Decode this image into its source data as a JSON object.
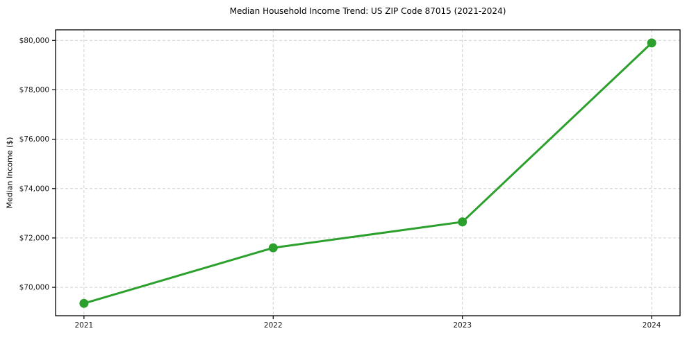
{
  "chart_data": {
    "type": "line",
    "title": "Median Household Income Trend: US ZIP Code 87015 (2021-2024)",
    "xlabel": "",
    "ylabel": "Median Income ($)",
    "categories": [
      "2021",
      "2022",
      "2023",
      "2024"
    ],
    "x": [
      2021,
      2022,
      2023,
      2024
    ],
    "series": [
      {
        "name": "Median Household Income",
        "values": [
          69350,
          71600,
          72650,
          79900
        ]
      }
    ],
    "y_ticks": [
      {
        "value": 70000,
        "label": "$70,000"
      },
      {
        "value": 72000,
        "label": "$72,000"
      },
      {
        "value": 74000,
        "label": "$74,000"
      },
      {
        "value": 76000,
        "label": "$76,000"
      },
      {
        "value": 78000,
        "label": "$78,000"
      },
      {
        "value": 80000,
        "label": "$80,000"
      }
    ],
    "xlim": [
      2020.85,
      2024.15
    ],
    "ylim": [
      68850,
      80430
    ],
    "grid": true,
    "legend": "none",
    "colors": {
      "line": "#2ca02c",
      "marker": "#2ca02c",
      "grid": "#cfcfcf",
      "axis": "#000000",
      "background": "#ffffff"
    }
  }
}
